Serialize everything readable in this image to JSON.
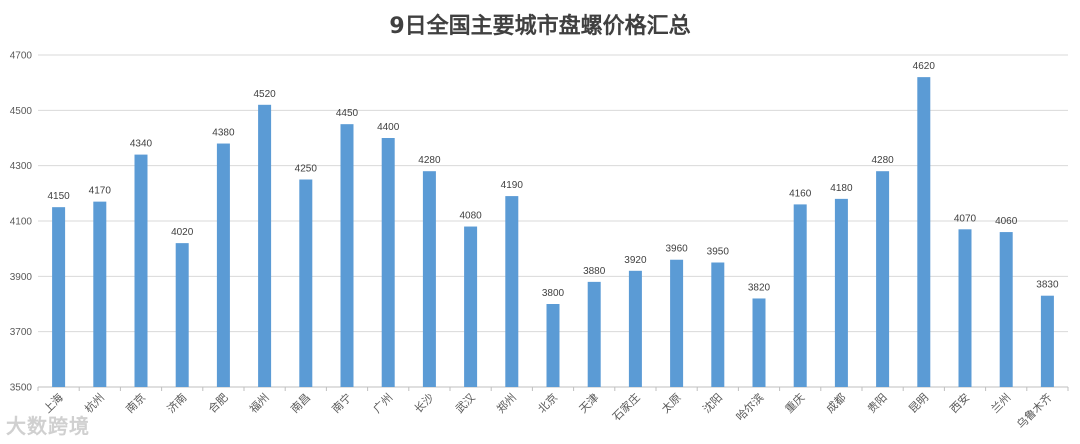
{
  "chart_data": {
    "type": "bar",
    "title": "9日全国主要城市盘螺价格汇总",
    "xlabel": "",
    "ylabel": "",
    "ylim": [
      3500,
      4700
    ],
    "yticks": [
      3500,
      3700,
      3900,
      4100,
      4300,
      4500,
      4700
    ],
    "grid": true,
    "legend": "none",
    "bar_color": "#5B9BD5",
    "categories": [
      "上海",
      "杭州",
      "南京",
      "济南",
      "合肥",
      "福州",
      "南昌",
      "南宁",
      "广州",
      "长沙",
      "武汉",
      "郑州",
      "北京",
      "天津",
      "石家庄",
      "太原",
      "沈阳",
      "哈尔滨",
      "重庆",
      "成都",
      "贵阳",
      "昆明",
      "西安",
      "兰州",
      "乌鲁木齐"
    ],
    "values": [
      4150,
      4170,
      4340,
      4020,
      4380,
      4520,
      4250,
      4450,
      4400,
      4280,
      4080,
      4190,
      3800,
      3880,
      3920,
      3960,
      3950,
      3820,
      4160,
      4180,
      4280,
      4620,
      4070,
      4060,
      3830
    ]
  },
  "watermark": "大数跨境"
}
